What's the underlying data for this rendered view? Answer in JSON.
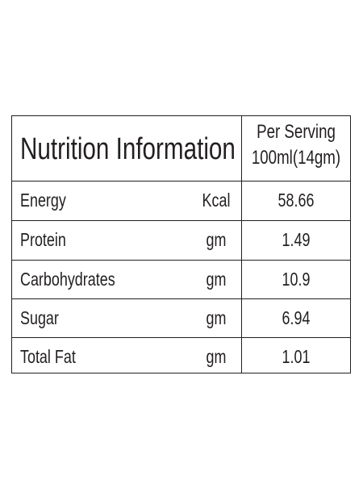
{
  "header": {
    "title": "Nutrition Information",
    "serving": [
      "Per Serving",
      "100ml(14gm)"
    ]
  },
  "table": {
    "rows": [
      [
        "Energy",
        "Kcal",
        "58.66"
      ],
      [
        "Protein",
        "gm",
        "1.49"
      ],
      [
        "Carbohydrates",
        "gm",
        "10.9"
      ],
      [
        "Sugar",
        "gm",
        "6.94"
      ],
      [
        "Total Fat",
        "gm",
        "1.01"
      ]
    ]
  }
}
